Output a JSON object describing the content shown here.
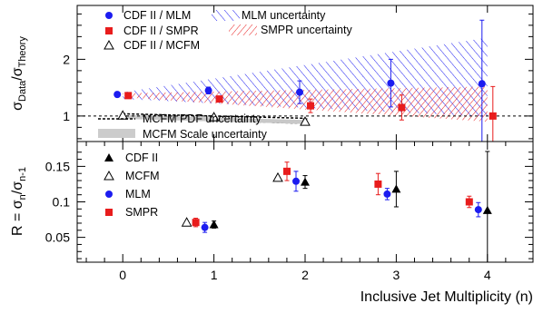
{
  "chart_data": [
    {
      "type": "scatter",
      "panel": "upper",
      "ylabel": "σ_Data/σ_Theory",
      "ylabel_main": "σ",
      "ylabel_sub1": "Data",
      "ylabel_slash": "/σ",
      "ylabel_sub2": "Theory",
      "xlim": [
        -0.5,
        4.5
      ],
      "ylim": [
        0.55,
        2.95
      ],
      "yticks": [
        1,
        2
      ],
      "reference_line": 1,
      "legend": {
        "cdf_mlm": "CDF II / MLM",
        "cdf_smpr": "CDF II / SMPR",
        "cdf_mcfm": "CDF II / MCFM",
        "mlm_unc": "MLM uncertainty",
        "smpr_unc": "SMPR uncertainty",
        "mcfm_pdf": "MCFM PDF uncertainty",
        "mcfm_scale": "MCFM Scale uncertainty"
      },
      "series": [
        {
          "name": "CDF II / MLM",
          "x": [
            0,
            1,
            2,
            3,
            4
          ],
          "y": [
            1.38,
            1.45,
            1.42,
            1.58,
            1.57
          ],
          "yerr": [
            0.03,
            0.06,
            0.2,
            0.42,
            1.12
          ],
          "color": "#1c1cf0",
          "marker": "circle"
        },
        {
          "name": "CDF II / SMPR",
          "x": [
            0,
            1,
            2,
            3,
            4
          ],
          "y": [
            1.36,
            1.3,
            1.18,
            1.15,
            1.0
          ],
          "yerr": [
            0.03,
            0.05,
            0.12,
            0.22,
            0.52
          ],
          "color": "#e81c1c",
          "marker": "square"
        },
        {
          "name": "CDF II / MCFM",
          "x": [
            0,
            1,
            2
          ],
          "y": [
            1.01,
            0.98,
            0.9
          ],
          "yerr": [
            0,
            0.03,
            0.05
          ],
          "color": "#000000",
          "marker": "open-triangle"
        }
      ],
      "bands": [
        {
          "name": "MLM uncertainty",
          "x": [
            0,
            4
          ],
          "low": [
            1.3,
            0.99
          ],
          "high": [
            1.42,
            2.38
          ],
          "color": "#1c1cf0",
          "hatch": "forward"
        },
        {
          "name": "SMPR uncertainty",
          "x": [
            0,
            4
          ],
          "low": [
            1.33,
            0.9
          ],
          "high": [
            1.4,
            1.52
          ],
          "color": "#e81c1c",
          "hatch": "backward"
        },
        {
          "name": "MCFM PDF uncertainty",
          "x": [
            0,
            2
          ],
          "low": [
            0.97,
            0.87
          ],
          "high": [
            1.04,
            0.96
          ],
          "color": "#000000",
          "style": "dashed"
        },
        {
          "name": "MCFM Scale uncertainty",
          "x": [
            0,
            2
          ],
          "low": [
            0.95,
            0.86
          ],
          "high": [
            1.02,
            0.93
          ],
          "color": "#bbbbbb",
          "style": "filled"
        }
      ]
    },
    {
      "type": "scatter",
      "panel": "lower",
      "ylabel": "R = σ_n /σ_n-1",
      "ylabel_main": "R = σ",
      "ylabel_sub1": "n",
      "ylabel_slash": "/σ",
      "ylabel_sub2": "n-1",
      "xlabel": "Inclusive Jet Multiplicity (n)",
      "xlim": [
        -0.5,
        4.5
      ],
      "ylim": [
        0.015,
        0.185
      ],
      "xticks": [
        0,
        1,
        2,
        3,
        4
      ],
      "yticks": [
        0.05,
        0.1,
        0.15
      ],
      "ytick_labels": [
        "0.05",
        "0.1",
        "0.15"
      ],
      "legend": {
        "cdf": "CDF II",
        "mcfm": "MCFM",
        "mlm": "MLM",
        "smpr": "SMPR"
      },
      "series": [
        {
          "name": "CDF II",
          "x": [
            1,
            2,
            3,
            4
          ],
          "y": [
            0.068,
            0.128,
            0.118,
            0.088
          ],
          "yerr": [
            0.005,
            0.009,
            0.025,
            0.083
          ],
          "color": "#000000",
          "marker": "triangle"
        },
        {
          "name": "MCFM",
          "x": [
            1,
            2
          ],
          "y": [
            0.071,
            0.134
          ],
          "yerr": [
            0,
            0
          ],
          "color": "#000000",
          "marker": "open-triangle"
        },
        {
          "name": "MLM",
          "x": [
            1,
            2,
            3,
            4
          ],
          "y": [
            0.064,
            0.129,
            0.111,
            0.089
          ],
          "yerr": [
            0.007,
            0.014,
            0.008,
            0.01
          ],
          "color": "#1c1cf0",
          "marker": "circle"
        },
        {
          "name": "SMPR",
          "x": [
            1,
            2,
            3,
            4
          ],
          "y": [
            0.071,
            0.143,
            0.125,
            0.1
          ],
          "yerr": [
            0.006,
            0.013,
            0.015,
            0.008
          ],
          "color": "#e81c1c",
          "marker": "square"
        }
      ]
    }
  ]
}
